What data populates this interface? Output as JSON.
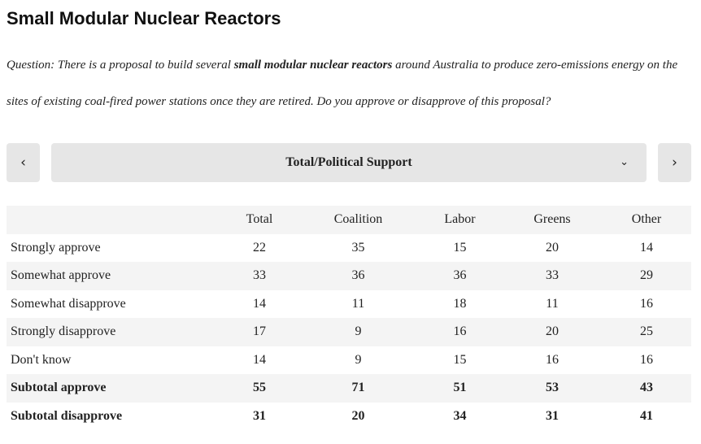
{
  "title": "Small Modular Nuclear Reactors",
  "question": {
    "prefix": "Question:  There is a proposal to build several ",
    "emphasis": "small modular nuclear reactors",
    "suffix": " around Australia to produce zero-emissions energy on the sites of existing coal-fired power stations once they are retired. Do you approve or disapprove of this proposal?"
  },
  "nav": {
    "prev_icon": "‹",
    "next_icon": "›",
    "selected": "Total/Political Support",
    "dropdown_icon": "⌄"
  },
  "table": {
    "columns": [
      "Total",
      "Coalition",
      "Labor",
      "Greens",
      "Other"
    ],
    "rows": [
      {
        "label": "Strongly approve",
        "values": [
          "22",
          "35",
          "15",
          "20",
          "14"
        ]
      },
      {
        "label": "Somewhat approve",
        "values": [
          "33",
          "36",
          "36",
          "33",
          "29"
        ]
      },
      {
        "label": "Somewhat disapprove",
        "values": [
          "14",
          "11",
          "18",
          "11",
          "16"
        ]
      },
      {
        "label": "Strongly disapprove",
        "values": [
          "17",
          "9",
          "16",
          "20",
          "25"
        ]
      },
      {
        "label": "Don't know",
        "values": [
          "14",
          "9",
          "15",
          "16",
          "16"
        ]
      },
      {
        "label": "Subtotal approve",
        "values": [
          "55",
          "71",
          "51",
          "53",
          "43"
        ]
      },
      {
        "label": "Subtotal disapprove",
        "values": [
          "31",
          "20",
          "34",
          "31",
          "41"
        ]
      }
    ]
  }
}
